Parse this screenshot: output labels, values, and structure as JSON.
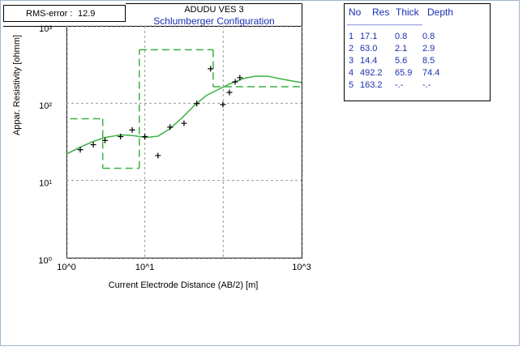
{
  "chart_data": {
    "type": "scatter",
    "title": "ADUDU VES 3",
    "subtitle": "Schlumberger Configuration",
    "rms_label": "RMS-error :",
    "rms_value": 12.9,
    "xlabel": "Current Electrode Distance (AB/2) [m]",
    "ylabel": "Appar. Resistivity [ohmm]",
    "log": true,
    "grid": true,
    "xlim": [
      1,
      1000
    ],
    "ylim": [
      1,
      1000
    ],
    "xticks": [
      {
        "value": 1,
        "label": "10^0"
      },
      {
        "value": 10,
        "label": "10^1"
      },
      {
        "value": 1000,
        "label": "10^3"
      }
    ],
    "xgrid": [
      1,
      10,
      100,
      1000
    ],
    "yticks": [
      {
        "value": 1,
        "label": "10⁰"
      },
      {
        "value": 10,
        "label": "10¹"
      },
      {
        "value": 100,
        "label": "10²"
      },
      {
        "value": 1000,
        "label": "10³"
      }
    ],
    "observed": {
      "color": "#000000",
      "x": [
        1.5,
        2.2,
        3.1,
        4.9,
        6.9,
        10,
        14.7,
        21,
        31.6,
        46,
        69,
        99,
        120,
        142,
        163
      ],
      "values": [
        25,
        29,
        33,
        37,
        45,
        37,
        21,
        49,
        55,
        99,
        279,
        96,
        138,
        189,
        214
      ]
    },
    "fit": {
      "color": "#3cb043",
      "x": [
        1,
        1.5,
        2.2,
        3.1,
        5,
        7.2,
        10.3,
        14.8,
        21,
        30,
        43,
        61,
        88,
        125,
        179,
        256,
        366,
        523,
        750,
        1000
      ],
      "values": [
        22,
        27,
        32,
        36,
        39,
        38,
        36,
        37.5,
        47,
        65,
        94,
        126,
        152,
        180,
        208,
        224,
        224,
        208,
        194,
        185
      ]
    },
    "model_color": "#3cb043"
  },
  "layer_table": {
    "header": [
      "No",
      "Res",
      "Thick",
      "Depth"
    ],
    "separator": "-------------------------------",
    "rows": [
      [
        "1",
        "17.1",
        "0.8",
        "0.8"
      ],
      [
        "2",
        "63.0",
        "2.1",
        "2.9"
      ],
      [
        "3",
        "14.4",
        "5.6",
        "8.5"
      ],
      [
        "4",
        "492.2",
        "65.9",
        "74.4"
      ],
      [
        "5",
        "163.2",
        "-.-",
        "-.-"
      ]
    ]
  }
}
